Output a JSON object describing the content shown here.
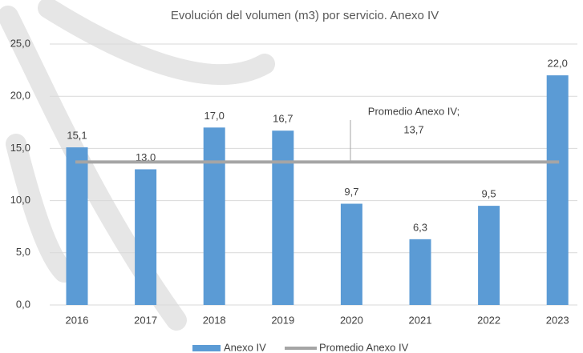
{
  "chart_data": {
    "type": "bar",
    "title": "Evolución del volumen (m3) por servicio. Anexo IV",
    "categories": [
      "2016",
      "2017",
      "2018",
      "2019",
      "2020",
      "2021",
      "2022",
      "2023"
    ],
    "series": [
      {
        "name": "Anexo IV",
        "color": "#5b9bd5",
        "values": [
          15.1,
          13.0,
          17.0,
          16.7,
          9.7,
          6.3,
          9.5,
          22.0
        ],
        "value_labels": [
          "15,1",
          "13,0",
          "17,0",
          "16,7",
          "9,7",
          "6,3",
          "9,5",
          "22,0"
        ]
      }
    ],
    "average": {
      "name": "Promedio Anexo IV",
      "value": 13.7,
      "label": "13,7",
      "color": "#a5a5a5",
      "annotation": "Promedio Anexo IV;"
    },
    "ylim": [
      0,
      25
    ],
    "yticks": [
      {
        "value": 0,
        "label": "0,0"
      },
      {
        "value": 5,
        "label": "5,0"
      },
      {
        "value": 10,
        "label": "10,0"
      },
      {
        "value": 15,
        "label": "15,0"
      },
      {
        "value": 20,
        "label": "20,0"
      },
      {
        "value": 25,
        "label": "25,0"
      }
    ],
    "grid": true
  }
}
